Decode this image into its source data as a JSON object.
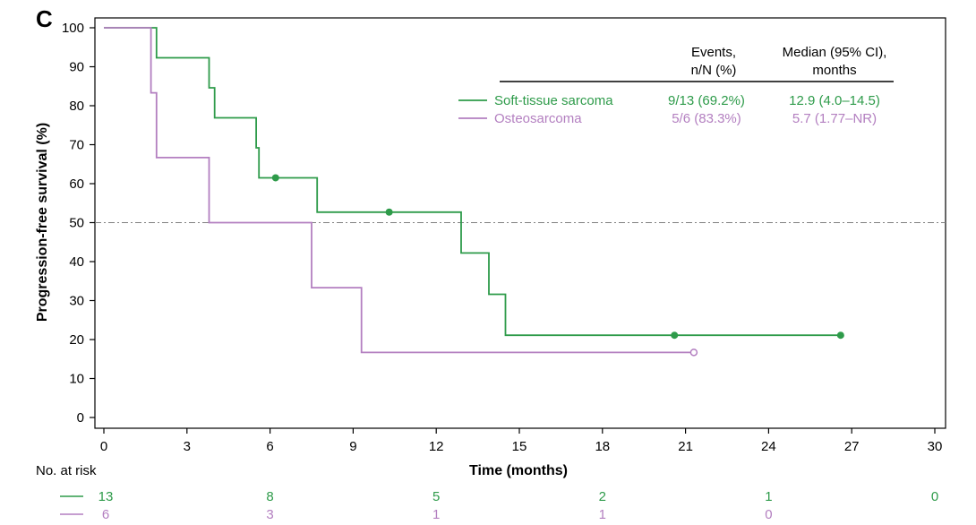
{
  "panel_label": "C",
  "chart_data": {
    "type": "line",
    "subtype": "kaplan-meier-step",
    "xlabel": "Time (months)",
    "ylabel": "Progression-free survival (%)",
    "xlim": [
      0,
      30
    ],
    "ylim": [
      0,
      100
    ],
    "x_ticks": [
      0,
      3,
      6,
      9,
      12,
      15,
      18,
      21,
      24,
      27,
      30
    ],
    "y_ticks": [
      0,
      10,
      20,
      30,
      40,
      50,
      60,
      70,
      80,
      90,
      100
    ],
    "reference_line": {
      "y": 50,
      "style": "dash-dot"
    },
    "grid": false,
    "legend_placement": "top-right",
    "legend_headers": {
      "events": [
        "Events,",
        "n/N (%)"
      ],
      "median": [
        "Median (95% CI),",
        "months"
      ]
    },
    "series": [
      {
        "name": "Soft-tissue sarcoma",
        "color": "#2e9b4a",
        "events": "9/13 (69.2%)",
        "median": "12.9 (4.0–14.5)",
        "steps": [
          [
            0,
            100
          ],
          [
            1.9,
            100
          ],
          [
            1.9,
            92.3
          ],
          [
            3.8,
            92.3
          ],
          [
            3.8,
            84.6
          ],
          [
            4.0,
            84.6
          ],
          [
            4.0,
            76.9
          ],
          [
            5.5,
            76.9
          ],
          [
            5.5,
            69.2
          ],
          [
            5.6,
            69.2
          ],
          [
            5.6,
            61.5
          ],
          [
            7.7,
            61.5
          ],
          [
            7.7,
            52.7
          ],
          [
            12.9,
            52.7
          ],
          [
            12.9,
            42.2
          ],
          [
            13.9,
            42.2
          ],
          [
            13.9,
            31.6
          ],
          [
            14.5,
            31.6
          ],
          [
            14.5,
            21.1
          ],
          [
            26.6,
            21.1
          ]
        ],
        "censored": [
          [
            6.2,
            61.5
          ],
          [
            10.3,
            52.7
          ],
          [
            20.6,
            21.1
          ],
          [
            26.6,
            21.1
          ]
        ],
        "censor_style": "filled",
        "at_risk": [
          13,
          8,
          5,
          2,
          1,
          0
        ]
      },
      {
        "name": "Osteosarcoma",
        "color": "#b37fc0",
        "events": "5/6 (83.3%)",
        "median": "5.7 (1.77–NR)",
        "steps": [
          [
            0,
            100
          ],
          [
            1.7,
            100
          ],
          [
            1.7,
            83.3
          ],
          [
            1.9,
            83.3
          ],
          [
            1.9,
            66.7
          ],
          [
            3.8,
            66.7
          ],
          [
            3.8,
            50
          ],
          [
            7.5,
            50
          ],
          [
            7.5,
            33.3
          ],
          [
            9.3,
            33.3
          ],
          [
            9.3,
            16.7
          ],
          [
            21.3,
            16.7
          ]
        ],
        "censored": [
          [
            21.3,
            16.7
          ]
        ],
        "censor_style": "open",
        "at_risk": [
          6,
          3,
          1,
          1,
          0
        ]
      }
    ],
    "at_risk_title": "No. at risk",
    "at_risk_times": [
      0,
      6,
      12,
      18,
      24,
      30
    ]
  }
}
